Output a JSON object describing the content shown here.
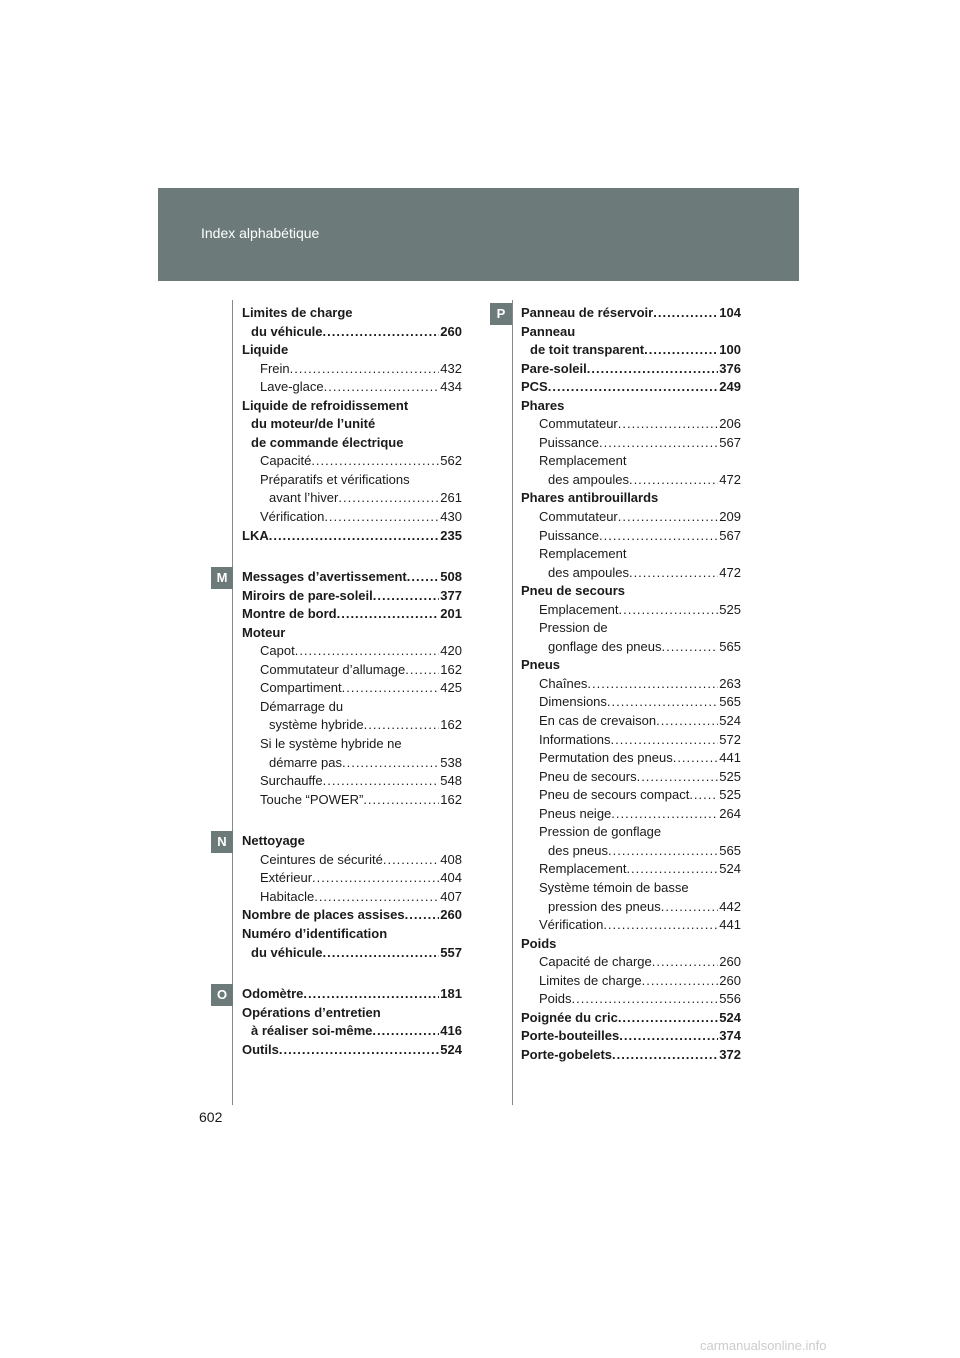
{
  "header": {
    "title": "Index alphabétique"
  },
  "page_number": "602",
  "columns": [
    {
      "sections": [
        {
          "letter": "",
          "entries": [
            {
              "text": "Limites de charge",
              "level": "l0"
            },
            {
              "text": "du véhicule ",
              "page": "260",
              "level": "l0c"
            },
            {
              "text": "Liquide",
              "level": "l0"
            },
            {
              "text": "Frein ",
              "page": "432",
              "level": "l1"
            },
            {
              "text": "Lave-glace",
              "page": "434",
              "level": "l1"
            },
            {
              "text": "Liquide de refroidissement",
              "level": "l0"
            },
            {
              "text": "du moteur/de l’unité",
              "level": "l0c"
            },
            {
              "text": "de commande électrique",
              "level": "l0c"
            },
            {
              "text": "Capacité",
              "page": "562",
              "level": "l1"
            },
            {
              "text": "Préparatifs et vérifications",
              "level": "l1"
            },
            {
              "text": "avant l’hiver ",
              "page": "261",
              "level": "l2"
            },
            {
              "text": "Vérification ",
              "page": "430",
              "level": "l1"
            },
            {
              "text": "LKA",
              "page": "235",
              "level": "l0"
            }
          ]
        },
        {
          "letter": "M",
          "entries": [
            {
              "text": "Messages d’avertissement ",
              "page": "508",
              "level": "l0"
            },
            {
              "text": "Miroirs de pare-soleil",
              "page": "377",
              "level": "l0"
            },
            {
              "text": "Montre de bord",
              "page": "201",
              "level": "l0"
            },
            {
              "text": "Moteur",
              "level": "l0"
            },
            {
              "text": "Capot",
              "page": "420",
              "level": "l1"
            },
            {
              "text": "Commutateur d’allumage ",
              "page": "162",
              "level": "l1"
            },
            {
              "text": "Compartiment ",
              "page": "425",
              "level": "l1"
            },
            {
              "text": "Démarrage du",
              "level": "l1"
            },
            {
              "text": "système hybride",
              "page": "162",
              "level": "l2"
            },
            {
              "text": "Si le système hybride ne",
              "level": "l1"
            },
            {
              "text": "démarre pas",
              "page": "538",
              "level": "l2"
            },
            {
              "text": "Surchauffe",
              "page": "548",
              "level": "l1"
            },
            {
              "text": "Touche “POWER” ",
              "page": "162",
              "level": "l1"
            }
          ]
        },
        {
          "letter": "N",
          "entries": [
            {
              "text": "Nettoyage",
              "level": "l0"
            },
            {
              "text": "Ceintures de sécurité ",
              "page": "408",
              "level": "l1"
            },
            {
              "text": "Extérieur",
              "page": "404",
              "level": "l1"
            },
            {
              "text": "Habitacle ",
              "page": "407",
              "level": "l1"
            },
            {
              "text": "Nombre de places assises ",
              "page": "260",
              "level": "l0"
            },
            {
              "text": "Numéro d’identification",
              "level": "l0"
            },
            {
              "text": "du véhicule",
              "page": "557",
              "level": "l0c"
            }
          ]
        },
        {
          "letter": "O",
          "entries": [
            {
              "text": "Odomètre ",
              "page": "181",
              "level": "l0"
            },
            {
              "text": "Opérations d’entretien",
              "level": "l0"
            },
            {
              "text": "à réaliser soi-même ",
              "page": "416",
              "level": "l0c"
            },
            {
              "text": "Outils",
              "page": "524",
              "level": "l0"
            }
          ]
        }
      ]
    },
    {
      "sections": [
        {
          "letter": "P",
          "entries": [
            {
              "text": "Panneau de réservoir ",
              "page": "104",
              "level": "l0"
            },
            {
              "text": "Panneau",
              "level": "l0"
            },
            {
              "text": "de toit transparent ",
              "page": "100",
              "level": "l0c"
            },
            {
              "text": "Pare-soleil",
              "page": "376",
              "level": "l0"
            },
            {
              "text": "PCS ",
              "page": "249",
              "level": "l0"
            },
            {
              "text": "Phares",
              "level": "l0"
            },
            {
              "text": "Commutateur ",
              "page": "206",
              "level": "l1"
            },
            {
              "text": "Puissance ",
              "page": "567",
              "level": "l1"
            },
            {
              "text": "Remplacement",
              "level": "l1"
            },
            {
              "text": "des ampoules ",
              "page": "472",
              "level": "l2"
            },
            {
              "text": "Phares antibrouillards",
              "level": "l0"
            },
            {
              "text": "Commutateur ",
              "page": "209",
              "level": "l1"
            },
            {
              "text": "Puissance ",
              "page": "567",
              "level": "l1"
            },
            {
              "text": "Remplacement",
              "level": "l1"
            },
            {
              "text": "des ampoules ",
              "page": "472",
              "level": "l2"
            },
            {
              "text": "Pneu de secours",
              "level": "l0"
            },
            {
              "text": "Emplacement ",
              "page": "525",
              "level": "l1"
            },
            {
              "text": "Pression de",
              "level": "l1"
            },
            {
              "text": "gonflage des pneus ",
              "page": "565",
              "level": "l2"
            },
            {
              "text": "Pneus",
              "level": "l0"
            },
            {
              "text": "Chaînes",
              "page": "263",
              "level": "l1"
            },
            {
              "text": "Dimensions ",
              "page": "565",
              "level": "l1"
            },
            {
              "text": "En cas de crevaison",
              "page": "524",
              "level": "l1"
            },
            {
              "text": "Informations ",
              "page": "572",
              "level": "l1"
            },
            {
              "text": "Permutation des pneus ",
              "page": "441",
              "level": "l1"
            },
            {
              "text": "Pneu de secours ",
              "page": "525",
              "level": "l1"
            },
            {
              "text": "Pneu de secours compact ",
              "page": "525",
              "level": "l1"
            },
            {
              "text": "Pneus neige ",
              "page": "264",
              "level": "l1"
            },
            {
              "text": "Pression de gonflage",
              "level": "l1"
            },
            {
              "text": "des pneus ",
              "page": "565",
              "level": "l2"
            },
            {
              "text": "Remplacement",
              "page": "524",
              "level": "l1"
            },
            {
              "text": "Système témoin de basse",
              "level": "l1"
            },
            {
              "text": "pression des pneus ",
              "page": "442",
              "level": "l2"
            },
            {
              "text": "Vérification ",
              "page": "441",
              "level": "l1"
            },
            {
              "text": "Poids",
              "level": "l0"
            },
            {
              "text": "Capacité de charge",
              "page": "260",
              "level": "l1"
            },
            {
              "text": "Limites de charge",
              "page": "260",
              "level": "l1"
            },
            {
              "text": "Poids ",
              "page": "556",
              "level": "l1"
            },
            {
              "text": "Poignée du cric ",
              "page": "524",
              "level": "l0"
            },
            {
              "text": "Porte-bouteilles",
              "page": "374",
              "level": "l0"
            },
            {
              "text": "Porte-gobelets",
              "page": "372",
              "level": "l0"
            }
          ]
        }
      ]
    }
  ],
  "watermark": "carmanualsonline.info",
  "colors": {
    "header": "#6c7b79",
    "badge": "#6c7b79"
  }
}
